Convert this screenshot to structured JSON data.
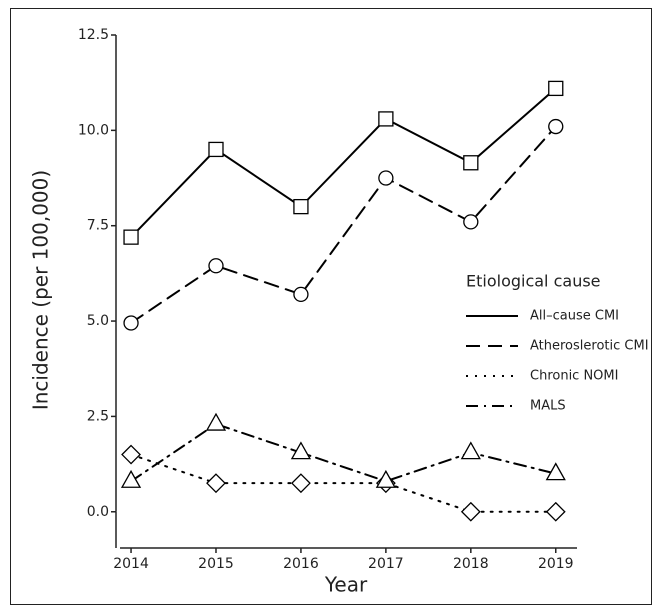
{
  "chart_data": {
    "type": "line",
    "x_label": "Year",
    "y_label": "Incidence (per 100,000)",
    "legend_title": "Etiological cause",
    "legend_position": "right",
    "x": [
      2014,
      2015,
      2016,
      2017,
      2018,
      2019
    ],
    "xlim": [
      2013.87,
      2019.25
    ],
    "xticks": [
      2014,
      2015,
      2016,
      2017,
      2018,
      2019
    ],
    "ylim": [
      -0.95,
      12.5
    ],
    "yticks": [
      {
        "value": 0,
        "label": "0.0"
      },
      2.5,
      {
        "value": 5,
        "label": "5.0"
      },
      7.5,
      {
        "value": 10,
        "label": "10.0"
      },
      12.5
    ],
    "series": [
      {
        "name": "All–cause CMI",
        "color": "#000000",
        "linestyle": "solid",
        "marker": "square",
        "values": [
          7.2,
          9.5,
          8.0,
          10.3,
          9.15,
          11.1
        ]
      },
      {
        "name": "Atheroslerotic CMI",
        "color": "#000000",
        "linestyle": "dashed",
        "marker": "circle",
        "values": [
          4.95,
          6.45,
          5.7,
          8.75,
          7.6,
          10.1
        ]
      },
      {
        "name": "Chronic NOMI",
        "color": "#000000",
        "linestyle": "dotted",
        "marker": "diamond",
        "values": [
          1.5,
          0.75,
          0.75,
          0.75,
          0.0,
          0.0
        ]
      },
      {
        "name": "MALS",
        "color": "#000000",
        "linestyle": "dashdot",
        "marker": "triangle",
        "values": [
          0.8,
          2.3,
          1.55,
          0.8,
          1.55,
          1.0
        ]
      }
    ]
  }
}
